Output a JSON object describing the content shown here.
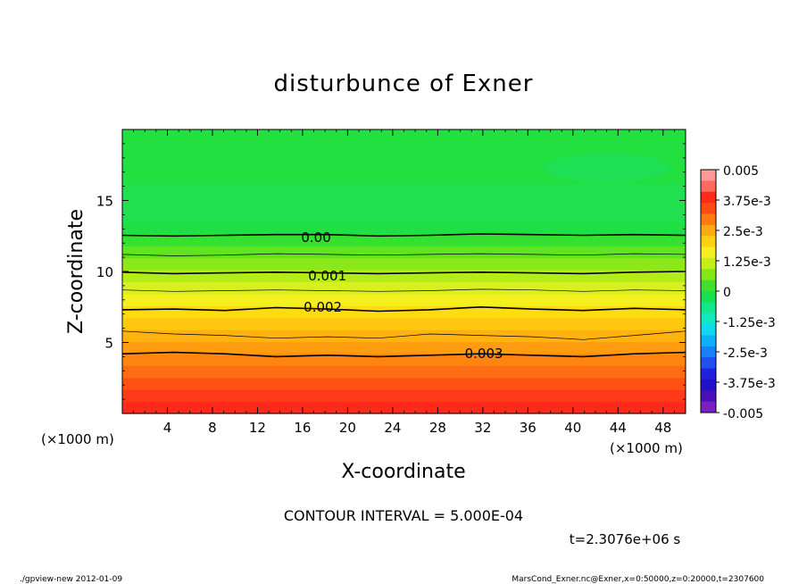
{
  "chart_data": {
    "type": "heatmap",
    "title": "disturbunce of Exner",
    "xlabel": "X-coordinate",
    "ylabel": "Z-coordinate",
    "xlim": [
      0,
      50
    ],
    "ylim": [
      0,
      20
    ],
    "x_unit_label_left": "(×1000 m)",
    "x_unit_label_right": "(×1000 m)",
    "x_ticks": [
      4,
      8,
      12,
      16,
      20,
      24,
      28,
      32,
      36,
      40,
      44,
      48
    ],
    "x_tick_labels": [
      "4",
      "8",
      "12",
      "16",
      "20",
      "24",
      "28",
      "32",
      "36",
      "40",
      "44",
      "48"
    ],
    "y_ticks": [
      5,
      10,
      15
    ],
    "y_tick_labels": [
      "5",
      "10",
      "15"
    ],
    "contour_labels": [
      {
        "text": "0.00",
        "x": 17.2,
        "z": 12.4
      },
      {
        "text": "0.001",
        "x": 18.2,
        "z": 9.7
      },
      {
        "text": "0.002",
        "x": 17.8,
        "z": 7.5
      },
      {
        "text": "0.003",
        "x": 32.1,
        "z": 4.2
      }
    ],
    "contour_lines": [
      {
        "level": 0.0,
        "z": [
          12.55,
          12.5,
          12.55,
          12.6,
          12.6,
          12.5,
          12.55,
          12.65,
          12.6,
          12.55,
          12.6,
          12.55
        ]
      },
      {
        "level": 0.0005,
        "z": [
          11.2,
          11.1,
          11.15,
          11.25,
          11.2,
          11.15,
          11.2,
          11.25,
          11.2,
          11.15,
          11.25,
          11.2
        ]
      },
      {
        "level": 0.001,
        "z": [
          9.95,
          9.85,
          9.9,
          9.95,
          9.9,
          9.85,
          9.9,
          9.95,
          9.9,
          9.85,
          9.95,
          10.0
        ]
      },
      {
        "level": 0.0015,
        "z": [
          8.7,
          8.6,
          8.65,
          8.7,
          8.65,
          8.6,
          8.65,
          8.75,
          8.7,
          8.6,
          8.7,
          8.65
        ]
      },
      {
        "level": 0.002,
        "z": [
          7.3,
          7.35,
          7.25,
          7.45,
          7.35,
          7.2,
          7.3,
          7.5,
          7.35,
          7.25,
          7.4,
          7.3
        ]
      },
      {
        "level": 0.0025,
        "z": [
          5.8,
          5.6,
          5.5,
          5.3,
          5.4,
          5.3,
          5.6,
          5.5,
          5.4,
          5.2,
          5.5,
          5.8
        ]
      },
      {
        "level": 0.003,
        "z": [
          4.2,
          4.3,
          4.2,
          4.0,
          4.1,
          4.0,
          4.1,
          4.2,
          4.1,
          4.0,
          4.2,
          4.3
        ]
      }
    ],
    "colorbar": {
      "min": -0.005,
      "max": 0.005,
      "tick_labels": [
        "0.005",
        "3.75e-3",
        "2.5e-3",
        "1.25e-3",
        "0",
        "-1.25e-3",
        "-2.5e-3",
        "-3.75e-3",
        "-0.005"
      ],
      "tick_values": [
        0.005,
        0.00375,
        0.0025,
        0.00125,
        0,
        -0.00125,
        -0.0025,
        -0.00375,
        -0.005
      ],
      "colors_top_to_bottom": [
        "#ff9a9a",
        "#ff6a5e",
        "#ff2a1c",
        "#ff4a14",
        "#ff7a10",
        "#ffaa10",
        "#ffd010",
        "#f4f020",
        "#c4f018",
        "#84e818",
        "#40e030",
        "#18e050",
        "#10e88a",
        "#10e8c0",
        "#10d8f0",
        "#10b0f8",
        "#1880f8",
        "#2050f0",
        "#2020e0",
        "#2010c8",
        "#4a10b8",
        "#7a20c0"
      ]
    },
    "field_colors_bottom_to_top": [
      "#ff2a1c",
      "#ff3a18",
      "#ff5214",
      "#ff6c12",
      "#ff8410",
      "#ff9c10",
      "#ffb210",
      "#ffc810",
      "#fedc10",
      "#f4f020",
      "#d8f020",
      "#b4ec18",
      "#8ce818",
      "#5ee420",
      "#34e030",
      "#1ee044"
    ],
    "contour_interval_text": "CONTOUR INTERVAL = 5.000E-04",
    "time_text": "t=2.3076e+06 s"
  },
  "footer": {
    "left": "./gpview-new   2012-01-09",
    "right": "MarsCond_Exner.nc@Exner,x=0:50000,z=0:20000,t=2307600"
  }
}
